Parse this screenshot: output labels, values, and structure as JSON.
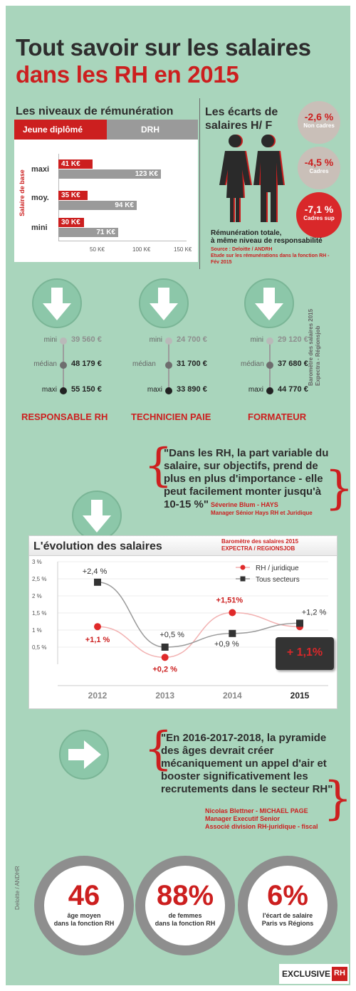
{
  "title": {
    "line1": "Tout savoir sur les salaires",
    "line2": "dans les RH en 2015"
  },
  "remuneration": {
    "heading": "Les niveaux de rémunération",
    "tab_active": "Jeune diplômé",
    "tab_inactive": "DRH",
    "axis_label": "Salaire de base",
    "rows": [
      {
        "label": "maxi",
        "junior": "41 K€",
        "drh": "123 K€"
      },
      {
        "label": "moy.",
        "junior": "35 K€",
        "drh": "94 K€"
      },
      {
        "label": "mini",
        "junior": "30 K€",
        "drh": "71 K€"
      }
    ],
    "ticks": [
      "50 K€",
      "100 K€",
      "150 K€"
    ]
  },
  "ecarts": {
    "heading_1": "Les écarts de",
    "heading_2": "salaires H/ F",
    "items": [
      {
        "value": "-2,6 %",
        "label": "Non cadres"
      },
      {
        "value": "-4,5 %",
        "label": "Cadres"
      },
      {
        "value": "-7,1 %",
        "label": "Cadres sup"
      }
    ],
    "note_1": "Rémunération totale,",
    "note_2": "à même niveau de responsabilité",
    "source_1": "Source : Deloitte / ANDRH",
    "source_2": "Etude sur les rémunérations dans la fonction RH -",
    "source_3": "Fév 2015"
  },
  "jobs": [
    {
      "name": "RESPONSABLE RH",
      "mini": "39 560 €",
      "median": "48 179 €",
      "maxi": "55 150 €"
    },
    {
      "name": "TECHNICIEN PAIE",
      "mini": "24 700 €",
      "median": "31 700 €",
      "maxi": "33 890 €"
    },
    {
      "name": "FORMATEUR",
      "mini": "29 120 €",
      "median": "37 680 €",
      "maxi": "44 770 €"
    }
  ],
  "range_labels": {
    "mini": "mini",
    "median": "médian",
    "maxi": "maxi"
  },
  "side_source_1": "Baromètre des salaires 2015",
  "side_source_2": "Expectra - Régionsjob",
  "quote1": {
    "text": "\"Dans les RH, la part variable du salaire, sur objectifs,  prend de plus en plus d'importance - elle peut facilement monter jusqu'à 10-15 %\"",
    "author": "Séverine Blum - HAYS",
    "role": "Manager Sénior Hays RH et Juridique"
  },
  "evolution": {
    "heading": "L'évolution des salaires",
    "source_1": "Baromètre des salaires 2015",
    "source_2": "EXPECTRA / REGIONSJOB",
    "highlight": "+ 1,1%"
  },
  "chart_data": {
    "type": "line",
    "title": "L'évolution des salaires",
    "categories": [
      "2012",
      "2013",
      "2014",
      "2015"
    ],
    "yticks": [
      "3 %",
      "2,5 %",
      "2 %",
      "1,5 %",
      "1 %",
      "0,5 %"
    ],
    "ylim": [
      0,
      3
    ],
    "legend_position": "top-right",
    "series": [
      {
        "name": "RH / juridique",
        "values": [
          1.1,
          0.2,
          1.51,
          1.1
        ],
        "labels": [
          "+1,1 %",
          "+0,2 %",
          "+1,51%",
          ""
        ],
        "color": "#e02a2a",
        "marker": "circle"
      },
      {
        "name": "Tous secteurs",
        "values": [
          2.4,
          0.5,
          0.9,
          1.2
        ],
        "labels": [
          "+2,4 %",
          "+0,5 %",
          "+0,9 %",
          "+1,2 %"
        ],
        "color": "#333333",
        "marker": "square"
      }
    ]
  },
  "quote2": {
    "text": "\"En 2016-2017-2018, la pyramide des âges devrait créer mécaniquement un appel d'air et booster significativement  les recrutements dans le secteur RH\"",
    "author": "Nicolas Blettner - MICHAEL PAGE",
    "role_1": "Manager Executif Senior",
    "role_2": "Associé division RH-juridique - fiscal"
  },
  "deloitte_credit": "Deloitte / ANDHR",
  "stats": [
    {
      "value": "46",
      "line1": "âge moyen",
      "line2": "dans la fonction RH"
    },
    {
      "value": "88%",
      "line1": "de femmes",
      "line2": "dans la fonction RH"
    },
    {
      "value": "6%",
      "line1": "l'écart de salaire",
      "line2": "Paris vs Régions"
    }
  ],
  "brand": {
    "text": "EXCLUSIVE",
    "mark": "RH"
  },
  "colors": {
    "background": "#a9d5bc",
    "accent_red": "#cc1f1f",
    "teal_arrow": "#8cc7a9",
    "grey": "#8e8e8e"
  }
}
